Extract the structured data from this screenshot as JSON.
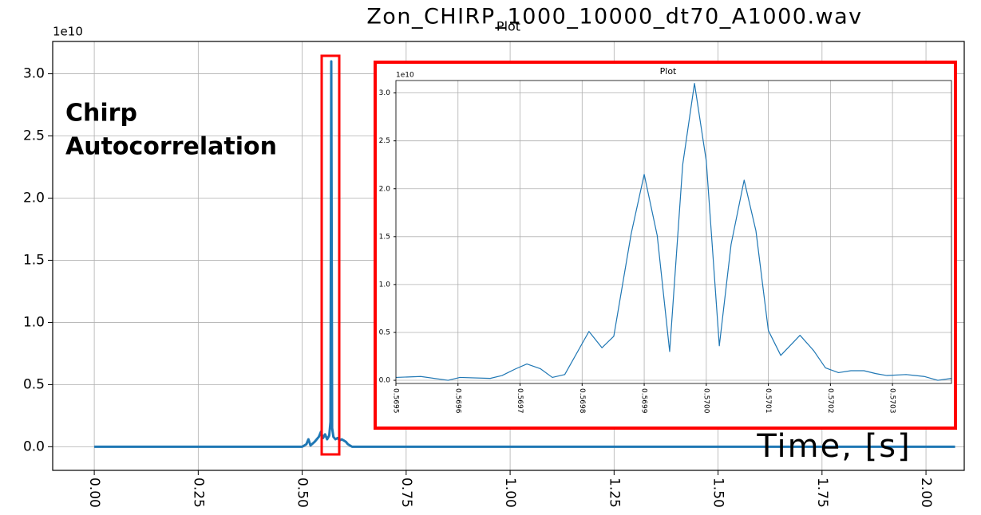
{
  "chart_data": [
    {
      "type": "line",
      "title": "Zon_CHIRP_1000_10000_dt70_A1000.wav",
      "subtitle": "Plot",
      "annotation": [
        "Chirp",
        "Autocorrelation"
      ],
      "xlabel": "Time, [s]",
      "y_offset_label": "1e10",
      "x": [
        0,
        0.5,
        0.51,
        0.515,
        0.52,
        0.53,
        0.54,
        0.545,
        0.55,
        0.555,
        0.56,
        0.565,
        0.568,
        0.5699,
        0.572,
        0.575,
        0.58,
        0.585,
        0.59,
        0.595,
        0.6,
        0.605,
        0.61,
        0.62,
        2.07
      ],
      "values": [
        0,
        0,
        0.02,
        0.06,
        0.01,
        0.04,
        0.08,
        0.12,
        0.07,
        0.1,
        0.06,
        0.09,
        0.2,
        3.1,
        0.15,
        0.08,
        0.06,
        0.07,
        0.05,
        0.06,
        0.05,
        0.04,
        0.02,
        0,
        0
      ],
      "color": "#1f77b4",
      "xlim": [
        -0.1,
        2.092
      ],
      "ylim": [
        -0.19,
        3.26
      ],
      "xticks": [
        {
          "value": 0,
          "label": "0.00"
        },
        0.25,
        {
          "value": 0.5,
          "label": "0.50"
        },
        0.75,
        {
          "value": 1,
          "label": "1.00"
        },
        1.25,
        {
          "value": 1.5,
          "label": "1.50"
        },
        1.75,
        {
          "value": 2,
          "label": "2.00"
        }
      ],
      "yticks": [
        {
          "value": 0,
          "label": "0.0"
        },
        0.5,
        {
          "value": 1,
          "label": "1.0"
        },
        1.5,
        {
          "value": 2,
          "label": "2.0"
        },
        2.5,
        {
          "value": 3,
          "label": "3.0"
        }
      ],
      "grid": true
    },
    {
      "type": "line",
      "title": "Plot",
      "y_offset_label": "1e10",
      "x": [
        0.5695,
        0.56954,
        0.569584,
        0.569603,
        0.569652,
        0.569671,
        0.569693,
        0.569711,
        0.569733,
        0.569752,
        0.569772,
        0.569811,
        0.569832,
        0.569851,
        0.569879,
        0.5699,
        0.569921,
        0.569941,
        0.569962,
        0.569981,
        0.57,
        0.570021,
        0.57004,
        0.570061,
        0.57008,
        0.5701,
        0.57012,
        0.570151,
        0.570173,
        0.570192,
        0.570213,
        0.570233,
        0.570254,
        0.570273,
        0.570291,
        0.570322,
        0.570351,
        0.570373,
        0.570395
      ],
      "values": [
        0.03,
        0.04,
        0,
        0.03,
        0.02,
        0.05,
        0.12,
        0.17,
        0.12,
        0.03,
        0.06,
        0.51,
        0.34,
        0.46,
        1.53,
        2.15,
        1.51,
        0.3,
        2.25,
        3.1,
        2.29,
        0.36,
        1.42,
        2.09,
        1.56,
        0.52,
        0.26,
        0.47,
        0.31,
        0.13,
        0.08,
        0.1,
        0.1,
        0.07,
        0.05,
        0.06,
        0.04,
        0,
        0.02
      ],
      "color": "#1f77b4",
      "xlim": [
        0.5695,
        0.570395
      ],
      "ylim": [
        -0.033,
        3.13
      ],
      "xticks": [
        0.5695,
        0.5696,
        0.5697,
        0.5698,
        0.5699,
        {
          "value": 0.57,
          "label": "0.5700"
        },
        0.5701,
        0.5702,
        0.5703
      ],
      "yticks": [
        {
          "value": 0,
          "label": "0.0"
        },
        0.5,
        {
          "value": 1,
          "label": "1.0"
        },
        1.5,
        {
          "value": 2,
          "label": "2.0"
        },
        2.5,
        {
          "value": 3,
          "label": "3.0"
        }
      ],
      "grid": true
    }
  ]
}
